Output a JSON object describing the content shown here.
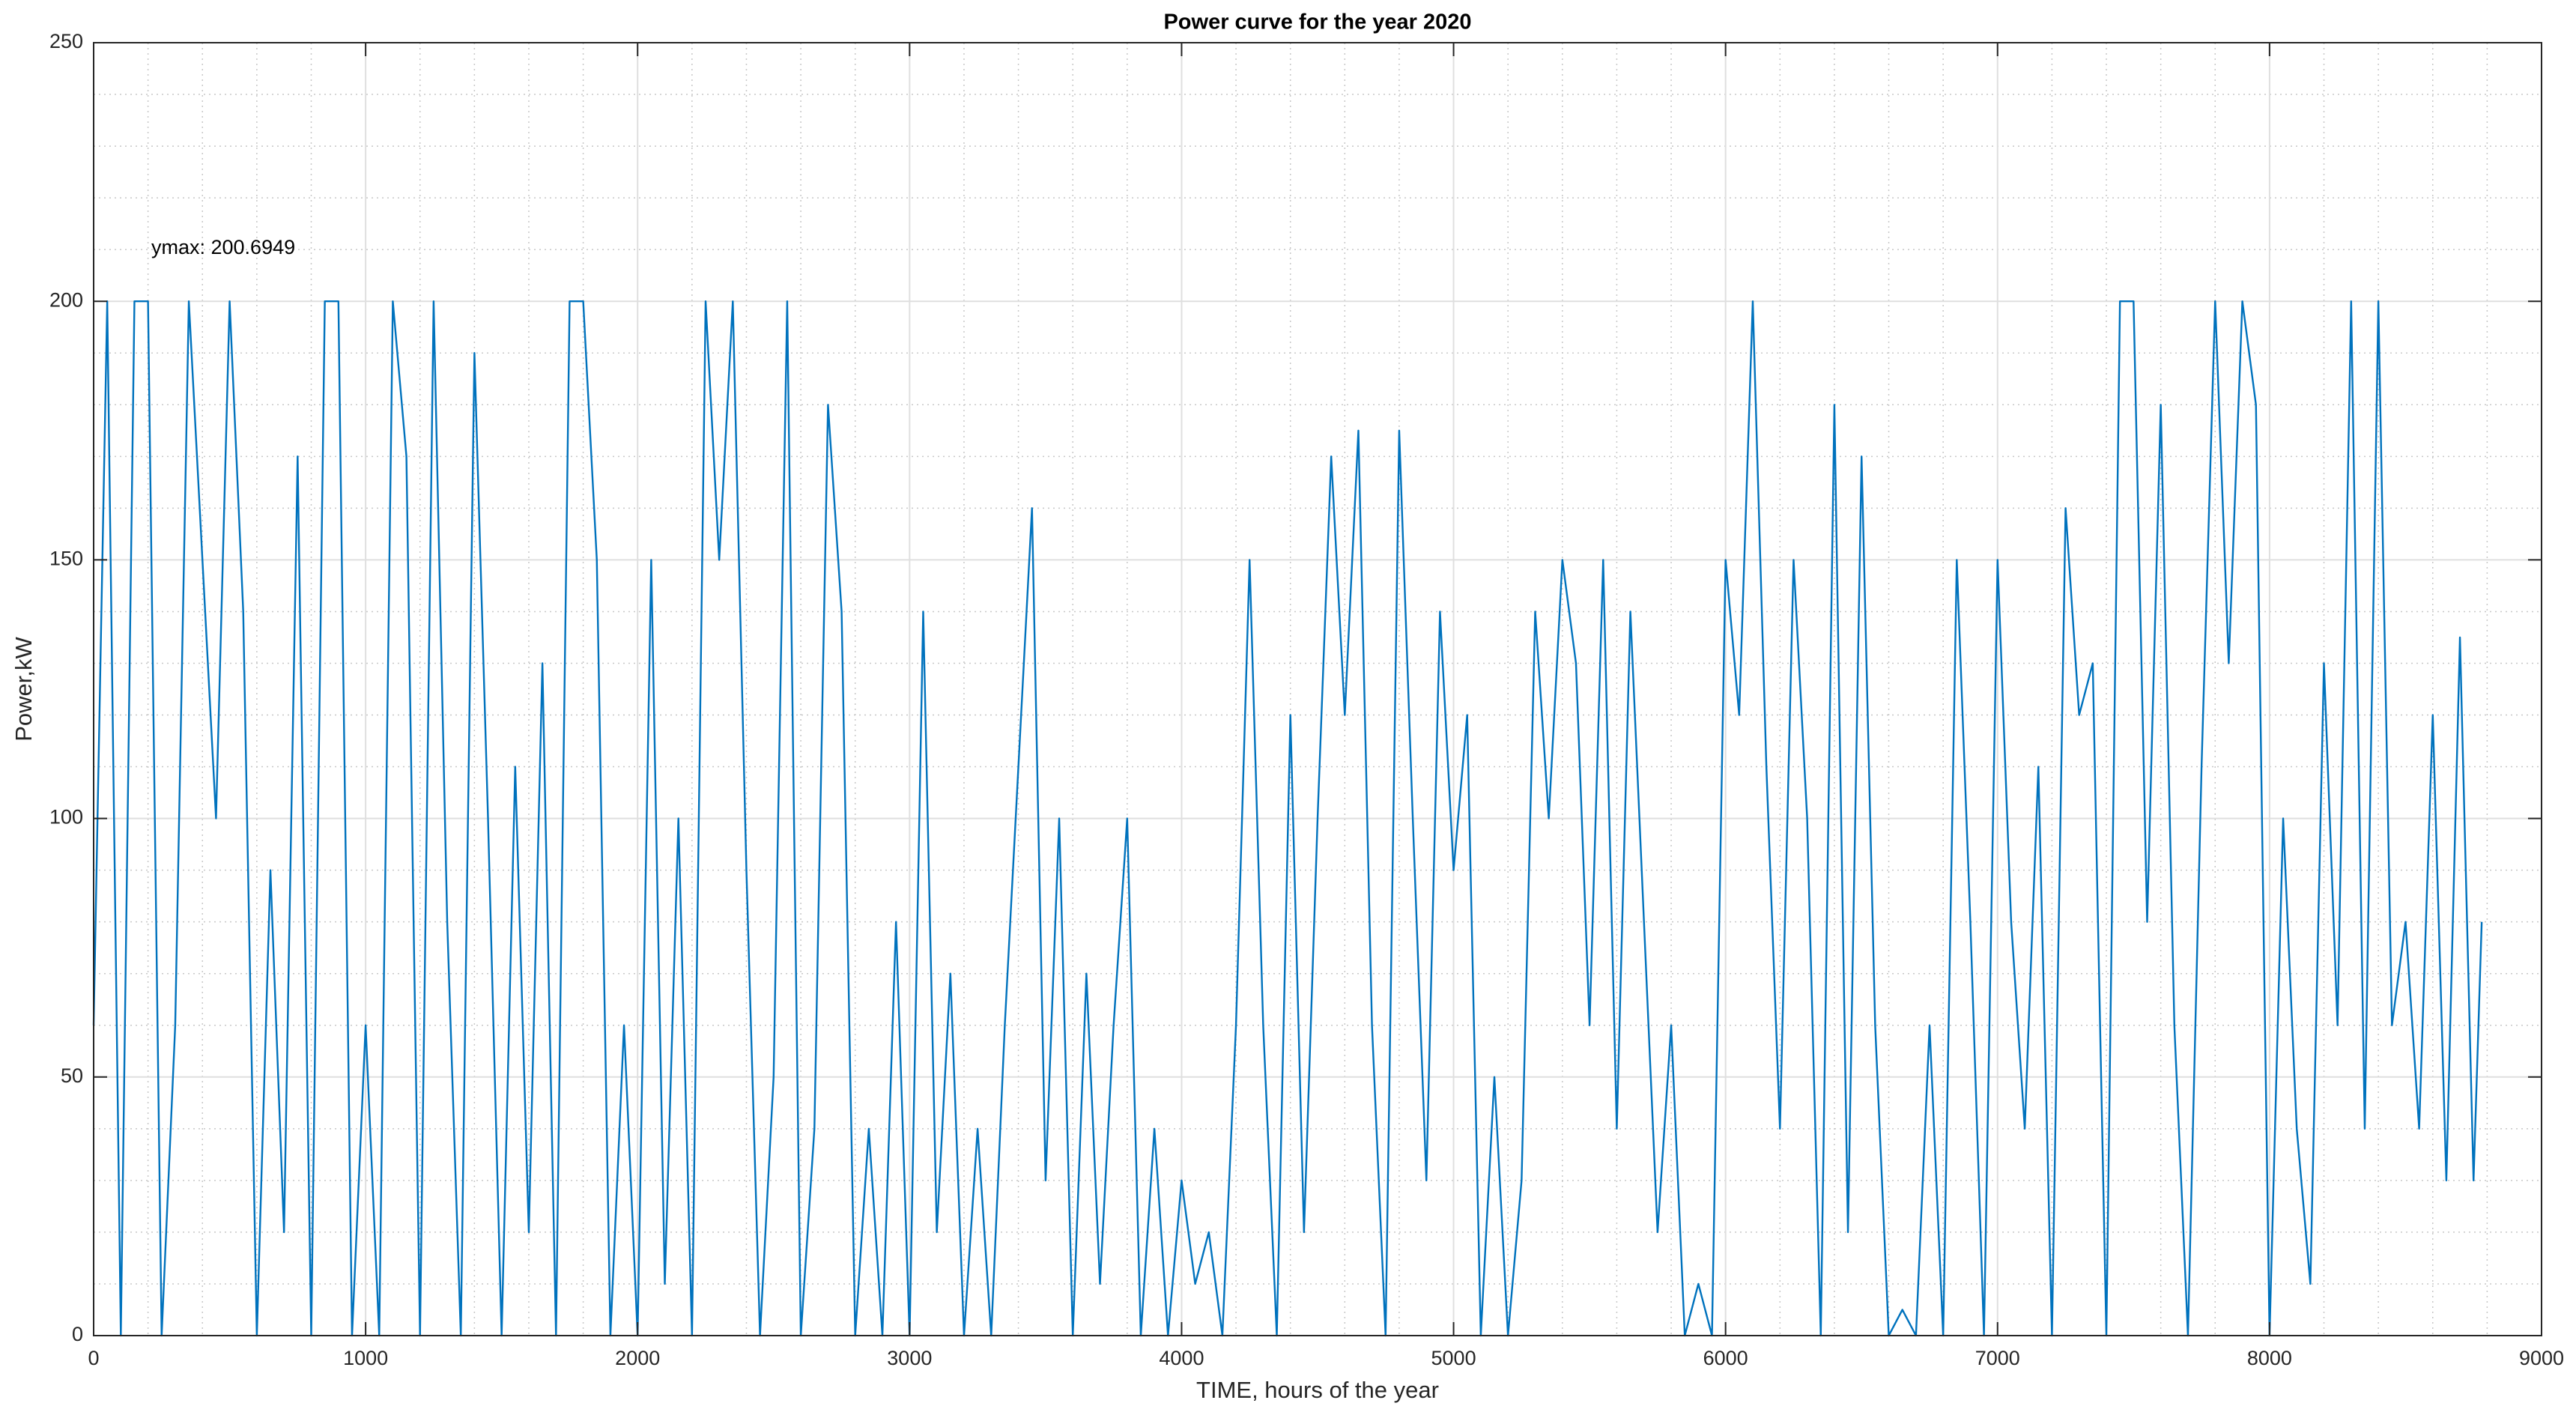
{
  "chart_data": {
    "type": "line",
    "title": "Power curve for the year 2020",
    "x_label": "TIME, hours of the year",
    "y_label": "Power,kW",
    "annotation": "ymax: 200.6949",
    "color": "#0072bd",
    "grid": true,
    "minor_grid": true,
    "xlim": [
      0,
      9000
    ],
    "xticks": [
      0,
      1000,
      2000,
      3000,
      4000,
      5000,
      6000,
      7000,
      8000,
      9000
    ],
    "ylim": [
      0,
      250
    ],
    "yticks": [
      0,
      50,
      100,
      150,
      200,
      250
    ],
    "x": [
      0,
      50,
      100,
      150,
      200,
      250,
      300,
      350,
      400,
      450,
      500,
      550,
      600,
      650,
      700,
      750,
      800,
      850,
      900,
      950,
      1000,
      1050,
      1100,
      1150,
      1200,
      1250,
      1300,
      1350,
      1400,
      1450,
      1500,
      1550,
      1600,
      1650,
      1700,
      1750,
      1800,
      1850,
      1900,
      1950,
      2000,
      2050,
      2100,
      2150,
      2200,
      2250,
      2300,
      2350,
      2400,
      2450,
      2500,
      2550,
      2600,
      2650,
      2700,
      2750,
      2800,
      2850,
      2900,
      2950,
      3000,
      3050,
      3100,
      3150,
      3200,
      3250,
      3300,
      3350,
      3400,
      3450,
      3500,
      3550,
      3600,
      3650,
      3700,
      3750,
      3800,
      3850,
      3900,
      3950,
      4000,
      4050,
      4100,
      4150,
      4200,
      4250,
      4300,
      4350,
      4400,
      4450,
      4500,
      4550,
      4600,
      4650,
      4700,
      4750,
      4800,
      4850,
      4900,
      4950,
      5000,
      5050,
      5100,
      5150,
      5200,
      5250,
      5300,
      5350,
      5400,
      5450,
      5500,
      5550,
      5600,
      5650,
      5700,
      5750,
      5800,
      5850,
      5900,
      5950,
      6000,
      6050,
      6100,
      6150,
      6200,
      6250,
      6300,
      6350,
      6400,
      6450,
      6500,
      6550,
      6600,
      6650,
      6700,
      6750,
      6800,
      6850,
      6900,
      6950,
      7000,
      7050,
      7100,
      7150,
      7200,
      7250,
      7300,
      7350,
      7400,
      7450,
      7500,
      7550,
      7600,
      7650,
      7700,
      7750,
      7800,
      7850,
      7900,
      7950,
      8000,
      8050,
      8100,
      8150,
      8200,
      8250,
      8300,
      8350,
      8400,
      8450,
      8500,
      8550,
      8600,
      8650,
      8700,
      8750,
      8780
    ],
    "values": [
      60,
      200,
      0,
      200,
      200,
      0,
      60,
      200,
      150,
      100,
      200,
      140,
      0,
      90,
      20,
      170,
      0,
      200,
      200,
      0,
      60,
      0,
      200,
      170,
      0,
      200,
      80,
      0,
      190,
      100,
      0,
      110,
      20,
      130,
      0,
      200,
      200,
      150,
      0,
      60,
      0,
      150,
      10,
      100,
      0,
      200,
      150,
      200,
      90,
      0,
      50,
      200,
      0,
      40,
      180,
      140,
      0,
      40,
      0,
      80,
      0,
      140,
      20,
      70,
      0,
      40,
      0,
      60,
      110,
      160,
      30,
      100,
      0,
      70,
      10,
      60,
      100,
      0,
      40,
      0,
      30,
      10,
      20,
      0,
      60,
      150,
      60,
      0,
      120,
      20,
      100,
      170,
      120,
      175,
      60,
      0,
      175,
      100,
      30,
      140,
      90,
      120,
      0,
      50,
      0,
      30,
      140,
      100,
      150,
      130,
      60,
      150,
      40,
      140,
      80,
      20,
      60,
      0,
      10,
      0,
      150,
      120,
      200,
      110,
      40,
      150,
      100,
      0,
      180,
      20,
      170,
      60,
      0,
      5,
      0,
      60,
      0,
      150,
      80,
      0,
      150,
      80,
      40,
      110,
      0,
      160,
      120,
      130,
      0,
      200,
      200,
      80,
      180,
      60,
      0,
      110,
      200,
      130,
      200,
      180,
      0,
      100,
      40,
      10,
      130,
      60,
      200,
      40,
      200,
      60,
      80,
      40,
      120,
      30,
      135,
      30,
      80
    ]
  }
}
